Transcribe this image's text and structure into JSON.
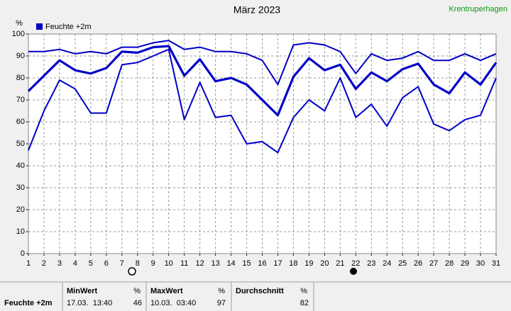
{
  "chart_data": {
    "type": "line",
    "title": "März 2023",
    "station": "Krentruperhagen",
    "legend": "Feuchte +2m",
    "y_unit": "%",
    "x": [
      1,
      2,
      3,
      4,
      5,
      6,
      7,
      8,
      9,
      10,
      11,
      12,
      13,
      14,
      15,
      16,
      17,
      18,
      19,
      20,
      21,
      22,
      23,
      24,
      25,
      26,
      27,
      28,
      29,
      30,
      31
    ],
    "xlim": [
      1,
      31
    ],
    "xticks": [
      1,
      2,
      3,
      4,
      5,
      6,
      7,
      8,
      9,
      10,
      11,
      12,
      13,
      14,
      15,
      16,
      17,
      18,
      19,
      20,
      21,
      22,
      23,
      24,
      25,
      26,
      27,
      28,
      29,
      30,
      31
    ],
    "ylim": [
      0,
      100
    ],
    "yticks": [
      0,
      10,
      20,
      30,
      40,
      50,
      60,
      70,
      80,
      90,
      100
    ],
    "grid": true,
    "color": "#0000c8",
    "series": [
      {
        "color": "#0000c8",
        "width": 2,
        "values": [
          92,
          92,
          93,
          91,
          92,
          91,
          94,
          94,
          96,
          97,
          93,
          94,
          92,
          92,
          91,
          88,
          77,
          95,
          96,
          95,
          92,
          82,
          91,
          88,
          89,
          92,
          88,
          88,
          91,
          88,
          91
        ]
      },
      {
        "color": "#0000c8",
        "width": 3.2,
        "values": [
          74,
          81,
          88,
          83.5,
          82,
          84.5,
          92,
          91.5,
          94,
          94.5,
          81,
          88.5,
          78.5,
          80,
          77,
          70,
          63,
          80.5,
          89,
          83.5,
          86,
          75,
          82.5,
          78.5,
          84,
          86.5,
          77,
          73,
          82.5,
          77,
          87
        ]
      },
      {
        "color": "#0000c8",
        "width": 2,
        "values": [
          47,
          65,
          79,
          75,
          64,
          64,
          86,
          87,
          90,
          93,
          61,
          78,
          62,
          63,
          50,
          51,
          46,
          62,
          70,
          65,
          80,
          62,
          68,
          58,
          71,
          76,
          59,
          56,
          61,
          63,
          80
        ]
      }
    ]
  },
  "table": {
    "row_label": "Feuchte +2m",
    "columns": [
      {
        "header": "MinWert",
        "unit": "%",
        "time": "17.03.  13:40",
        "value": 46
      },
      {
        "header": "MaxWert",
        "unit": "%",
        "time": "10.03.  03:40",
        "value": 97
      },
      {
        "header": "Durchschnitt",
        "unit": "%",
        "value": 82
      }
    ]
  }
}
